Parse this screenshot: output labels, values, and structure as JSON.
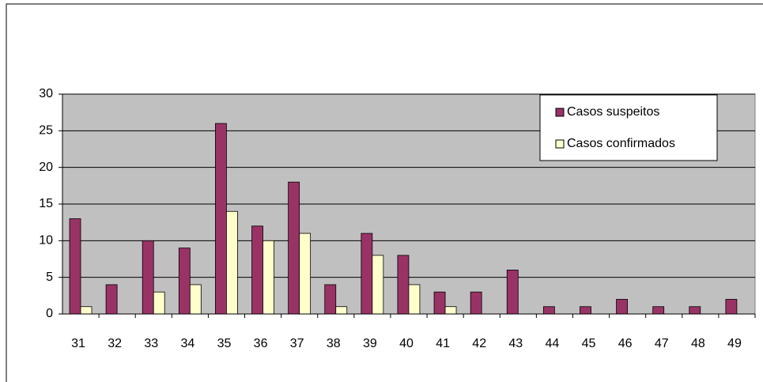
{
  "chart_data": {
    "type": "bar",
    "categories": [
      "31",
      "32",
      "33",
      "34",
      "35",
      "36",
      "37",
      "38",
      "39",
      "40",
      "41",
      "42",
      "43",
      "44",
      "45",
      "46",
      "47",
      "48",
      "49"
    ],
    "series": [
      {
        "name": "Casos  suspeitos",
        "color": "#993366",
        "values": [
          13,
          4,
          10,
          9,
          26,
          12,
          18,
          4,
          11,
          8,
          3,
          3,
          6,
          1,
          1,
          2,
          1,
          1,
          2
        ]
      },
      {
        "name": "Casos confirmados",
        "color": "#ffffcc",
        "values": [
          1,
          0,
          3,
          4,
          14,
          10,
          11,
          1,
          8,
          4,
          1,
          0,
          0,
          0,
          0,
          0,
          0,
          0,
          0
        ]
      }
    ],
    "ylim": [
      0,
      30
    ],
    "yticks": [
      0,
      5,
      10,
      15,
      20,
      25,
      30
    ],
    "grid": true,
    "legend": "upper right"
  }
}
